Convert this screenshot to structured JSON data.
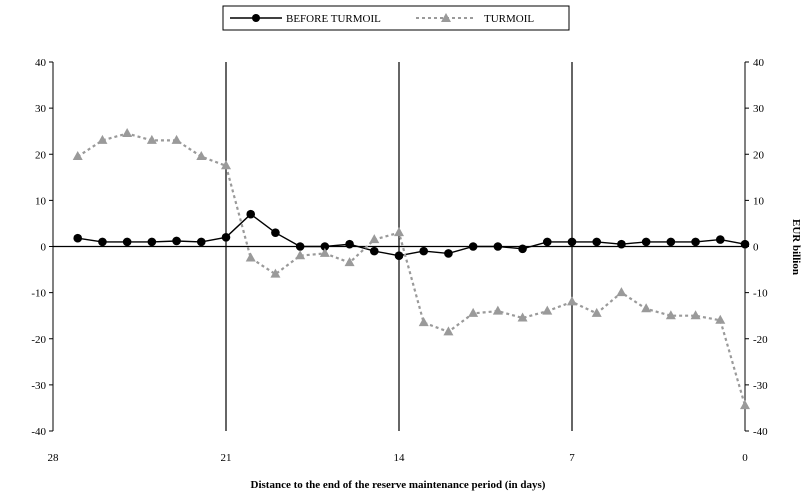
{
  "chart_data": {
    "type": "line",
    "xlabel": "Distance to the end of the reserve maintenance period (in days)",
    "ylabel_right": "EUR billion",
    "xlim": [
      28,
      0
    ],
    "ylim": [
      -40,
      40
    ],
    "x_ticks": [
      "28",
      "21",
      "14",
      "7",
      "0"
    ],
    "y_ticks": [
      "40",
      "30",
      "20",
      "10",
      "0",
      "-10",
      "-20",
      "-30",
      "-40"
    ],
    "vertical_lines_at": [
      21,
      14,
      7
    ],
    "legend": {
      "placement": "top-center"
    },
    "x": [
      27,
      26,
      25,
      24,
      23,
      22,
      21,
      20,
      19,
      18,
      17,
      16,
      15,
      14,
      13,
      12,
      11,
      10,
      9,
      8,
      7,
      6,
      5,
      4,
      3,
      2,
      1,
      0
    ],
    "series": [
      {
        "name": "BEFORE TURMOIL",
        "color": "#000000",
        "style": "solid",
        "marker": "circle",
        "values": [
          1.8,
          1.0,
          1.0,
          1.0,
          1.2,
          1.0,
          2.0,
          7.0,
          3.0,
          0.0,
          0.0,
          0.5,
          -1.0,
          -2.0,
          -1.0,
          -1.5,
          0.0,
          0.0,
          -0.5,
          1.0,
          1.0,
          1.0,
          0.5,
          1.0,
          1.0,
          1.0,
          1.5,
          0.5
        ]
      },
      {
        "name": "TURMOIL",
        "color": "#9a9a9a",
        "style": "dotted",
        "marker": "triangle",
        "values": [
          19.5,
          23.0,
          24.5,
          23.0,
          23.0,
          19.5,
          17.5,
          -2.5,
          -6.0,
          -2.0,
          -1.5,
          -3.5,
          1.5,
          3.0,
          -16.5,
          -18.5,
          -14.5,
          -14.0,
          -15.5,
          -14.0,
          -12.0,
          -14.5,
          -10.0,
          -13.5,
          -15.0,
          -15.0,
          -16.0,
          -34.5
        ]
      }
    ]
  }
}
